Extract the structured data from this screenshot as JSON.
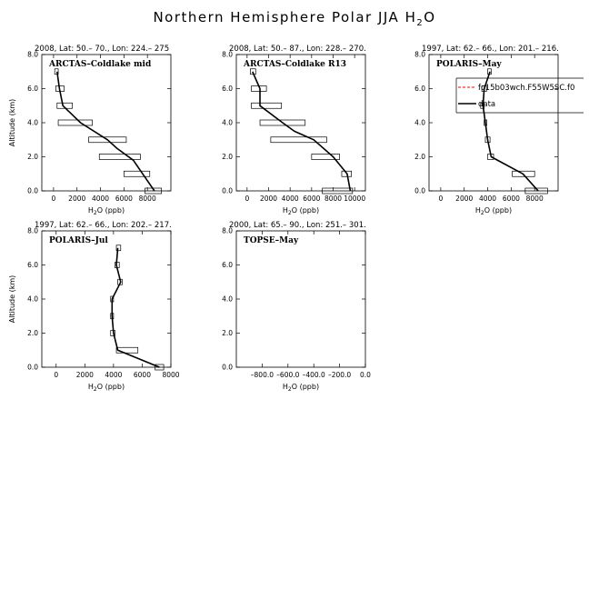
{
  "figure": {
    "title_main": "Northern Hemisphere Polar JJA H",
    "title_sub": "2",
    "title_end": "O"
  },
  "chart_data": [
    {
      "type": "line",
      "header": "2008, Lat:  50.– 70., Lon: 224.– 275",
      "name": "ARCTAS–Coldlake mid",
      "xlabel": "H2O (ppb)",
      "ylabel": "Altitude (km)",
      "xlim": [
        -1000,
        10000
      ],
      "ylim": [
        0,
        8
      ],
      "xticks": [
        0,
        2000,
        4000,
        6000,
        8000
      ],
      "xtick_labels": [
        "0",
        "2000",
        "4000",
        "6000",
        "8000"
      ],
      "yticks": [
        0,
        2,
        4,
        6,
        8
      ],
      "ytick_labels": [
        "0.0",
        "2.0",
        "4.0",
        "6.0",
        "8.0"
      ],
      "profile": {
        "x": [
          8600,
          7600,
          6800,
          5400,
          4600,
          2300,
          800,
          500,
          300
        ],
        "y": [
          0,
          1,
          1.8,
          2.5,
          3,
          4,
          5,
          6,
          7
        ]
      },
      "boxes": [
        {
          "y": 0,
          "xmin": 7800,
          "xmax": 9200
        },
        {
          "y": 1,
          "xmin": 6000,
          "xmax": 8200
        },
        {
          "y": 2,
          "xmin": 3900,
          "xmax": 7400
        },
        {
          "y": 3,
          "xmin": 3000,
          "xmax": 6200
        },
        {
          "y": 4,
          "xmin": 400,
          "xmax": 3300
        },
        {
          "y": 5,
          "xmin": 300,
          "xmax": 1600
        },
        {
          "y": 6,
          "xmin": 200,
          "xmax": 900
        },
        {
          "y": 7,
          "xmin": 100,
          "xmax": 400
        }
      ]
    },
    {
      "type": "line",
      "header": "2008, Lat:  50.– 87., Lon: 228.– 270.",
      "name": "ARCTAS–Coldlake R13",
      "xlabel": "H2O (ppb)",
      "ylabel": "",
      "xlim": [
        -1000,
        11000
      ],
      "ylim": [
        0,
        8
      ],
      "xticks": [
        0,
        2000,
        4000,
        6000,
        8000,
        10000
      ],
      "xtick_labels": [
        "0",
        "2000",
        "4000",
        "6000",
        "8000",
        "10000"
      ],
      "yticks": [
        0,
        2,
        4,
        6,
        8
      ],
      "ytick_labels": [
        "0.0",
        "2.0",
        "4.0",
        "6.0",
        "8.0"
      ],
      "profile": {
        "x": [
          9600,
          9300,
          8000,
          6200,
          4400,
          3300,
          1200,
          1200,
          500
        ],
        "y": [
          0,
          1,
          2,
          3,
          3.5,
          4,
          5,
          6,
          7
        ]
      },
      "boxes": [
        {
          "y": 0,
          "xmin": 7000,
          "xmax": 9800
        },
        {
          "y": 1,
          "xmin": 8800,
          "xmax": 9700
        },
        {
          "y": 2,
          "xmin": 6000,
          "xmax": 8600
        },
        {
          "y": 3,
          "xmin": 2200,
          "xmax": 7400
        },
        {
          "y": 4,
          "xmin": 1200,
          "xmax": 5400
        },
        {
          "y": 5,
          "xmin": 400,
          "xmax": 3200
        },
        {
          "y": 6,
          "xmin": 400,
          "xmax": 1800
        },
        {
          "y": 7,
          "xmin": 300,
          "xmax": 800
        }
      ]
    },
    {
      "type": "line",
      "header": "1997, Lat: 62.– 66., Lon: 201.– 216.",
      "name": "POLARIS–May",
      "xlabel": "H2O (ppb)",
      "ylabel": "",
      "xlim": [
        -1000,
        10000
      ],
      "ylim": [
        0,
        8
      ],
      "xticks": [
        0,
        2000,
        4000,
        6000,
        8000
      ],
      "xtick_labels": [
        "0",
        "2000",
        "4000",
        "6000",
        "8000"
      ],
      "yticks": [
        0,
        2,
        4,
        6,
        8
      ],
      "ytick_labels": [
        "0.0",
        "2.0",
        "4.0",
        "6.0",
        "8.0"
      ],
      "legend": {
        "model_label": "fc15b03wch.F55W5SC.f0",
        "data_label": "data",
        "model_color": "#ff0000"
      },
      "profile": {
        "x": [
          8300,
          7000,
          4300,
          4000,
          3800,
          3600,
          3700,
          4200
        ],
        "y": [
          0,
          1,
          2,
          3,
          4,
          5,
          6,
          7
        ]
      },
      "boxes": [
        {
          "y": 0,
          "xmin": 7200,
          "xmax": 9100
        },
        {
          "y": 1,
          "xmin": 6100,
          "xmax": 8000
        },
        {
          "y": 2,
          "xmin": 4000,
          "xmax": 4500
        },
        {
          "y": 3,
          "xmin": 3800,
          "xmax": 4200
        },
        {
          "y": 4,
          "xmin": 3700,
          "xmax": 3900
        },
        {
          "y": 5,
          "xmin": 3400,
          "xmax": 3700
        },
        {
          "y": 6,
          "xmin": 3500,
          "xmax": 3900
        },
        {
          "y": 7,
          "xmin": 4000,
          "xmax": 4300
        }
      ]
    },
    {
      "type": "line",
      "header": "1997, Lat: 62.– 66., Lon: 202.– 217.",
      "name": "POLARIS–Jul",
      "xlabel": "H2O (ppb)",
      "ylabel": "Altitude (km)",
      "xlim": [
        -1000,
        8000
      ],
      "ylim": [
        0,
        8
      ],
      "xticks": [
        0,
        2000,
        4000,
        6000,
        8000
      ],
      "xtick_labels": [
        "0",
        "2000",
        "4000",
        "6000",
        "8000"
      ],
      "yticks": [
        0,
        2,
        4,
        6,
        8
      ],
      "ytick_labels": [
        "0.0",
        "2.0",
        "4.0",
        "6.0",
        "8.0"
      ],
      "profile": {
        "x": [
          7200,
          4300,
          4000,
          3900,
          3900,
          4500,
          4200,
          4300
        ],
        "y": [
          0,
          1,
          2,
          3,
          4,
          5,
          6,
          7
        ]
      },
      "boxes": [
        {
          "y": 0,
          "xmin": 6900,
          "xmax": 7500
        },
        {
          "y": 1,
          "xmin": 4200,
          "xmax": 5700
        },
        {
          "y": 2,
          "xmin": 3800,
          "xmax": 4100
        },
        {
          "y": 3,
          "xmin": 3800,
          "xmax": 4000
        },
        {
          "y": 4,
          "xmin": 3800,
          "xmax": 4000
        },
        {
          "y": 5,
          "xmin": 4300,
          "xmax": 4600
        },
        {
          "y": 6,
          "xmin": 4100,
          "xmax": 4400
        },
        {
          "y": 7,
          "xmin": 4200,
          "xmax": 4500
        }
      ]
    },
    {
      "type": "line",
      "header": "2000, Lat: 65.– 90., Lon: 251.– 301.",
      "name": "TOPSE–May",
      "xlabel": "H2O (ppb)",
      "ylabel": "",
      "xlim": [
        -1000,
        0
      ],
      "ylim": [
        0,
        8
      ],
      "xticks": [
        -800,
        -600,
        -400,
        -200,
        0
      ],
      "xtick_labels": [
        "–800.0",
        "–600.0",
        "–400.0",
        "–200.0",
        "0.0"
      ],
      "yticks": [
        0,
        2,
        4,
        6,
        8
      ],
      "ytick_labels": [
        "0.0",
        "2.0",
        "4.0",
        "6.0",
        "8.0"
      ],
      "profile": {
        "x": [],
        "y": []
      },
      "boxes": []
    }
  ]
}
